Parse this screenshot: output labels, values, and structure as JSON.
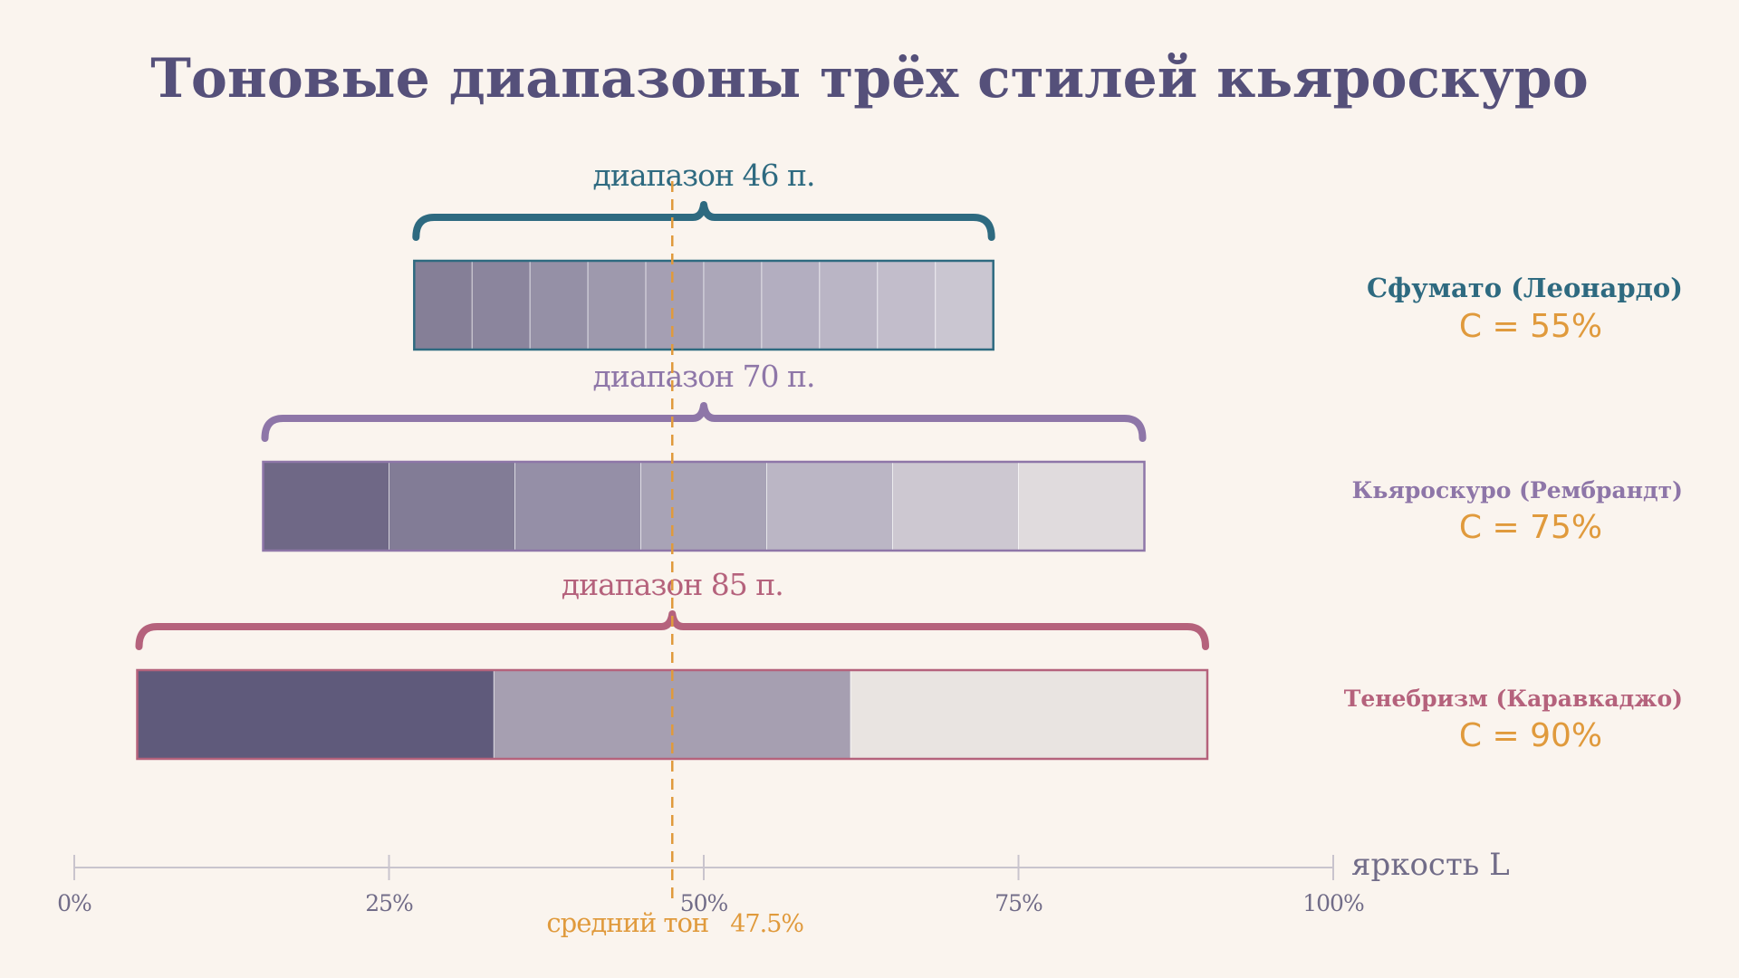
{
  "chart_data": {
    "type": "bar",
    "title": "Тоновые диапазоны трёх стилей кьяроскуро",
    "xlabel": "яркость L",
    "xlim": [
      0,
      100
    ],
    "x_ticks": [
      0,
      25,
      50,
      75,
      100
    ],
    "x_tick_labels": [
      "0%",
      "25%",
      "50%",
      "75%",
      "100%"
    ],
    "mean": {
      "value": 47.5,
      "label": "средний тон",
      "value_label": "47.5%",
      "color": "#e09a3c"
    },
    "series": [
      {
        "name": "Сфумато (Леонардо)",
        "start": 27,
        "end": 73,
        "steps": 10,
        "range_label": "диапазон 46 п.",
        "contrast_label": "C  = 55%",
        "color": "#2e6a80",
        "fill_colors": [
          "#857f97",
          "#8b859d",
          "#9590a6",
          "#9e99ad",
          "#a59fb3",
          "#aca7b9",
          "#b3aec0",
          "#bab5c5",
          "#c2bdcb",
          "#cac6d1"
        ]
      },
      {
        "name": "Кьяроскуро (Рембрандт)",
        "start": 15,
        "end": 85,
        "steps": 7,
        "range_label": "диапазон 70 п.",
        "contrast_label": "C  = 75%",
        "color": "#8e76a8",
        "fill_colors": [
          "#6f6886",
          "#827c96",
          "#958fa7",
          "#a8a3b6",
          "#bbb6c5",
          "#cdc8d1",
          "#e0dbdd"
        ]
      },
      {
        "name": "Тенебризм (Каравкаджо)",
        "start": 5,
        "end": 90,
        "steps": 3,
        "range_label": "диапазон 85 п.",
        "contrast_label": "C  = 90%",
        "color": "#b5627c",
        "fill_colors": [
          "#5f5a7b",
          "#a69fb1",
          "#e9e4e1"
        ]
      }
    ],
    "colors": {
      "title": "#55507a",
      "axis": "#c9c4cd",
      "tick_text": "#716c88",
      "contrast": "#e09a3c"
    }
  }
}
